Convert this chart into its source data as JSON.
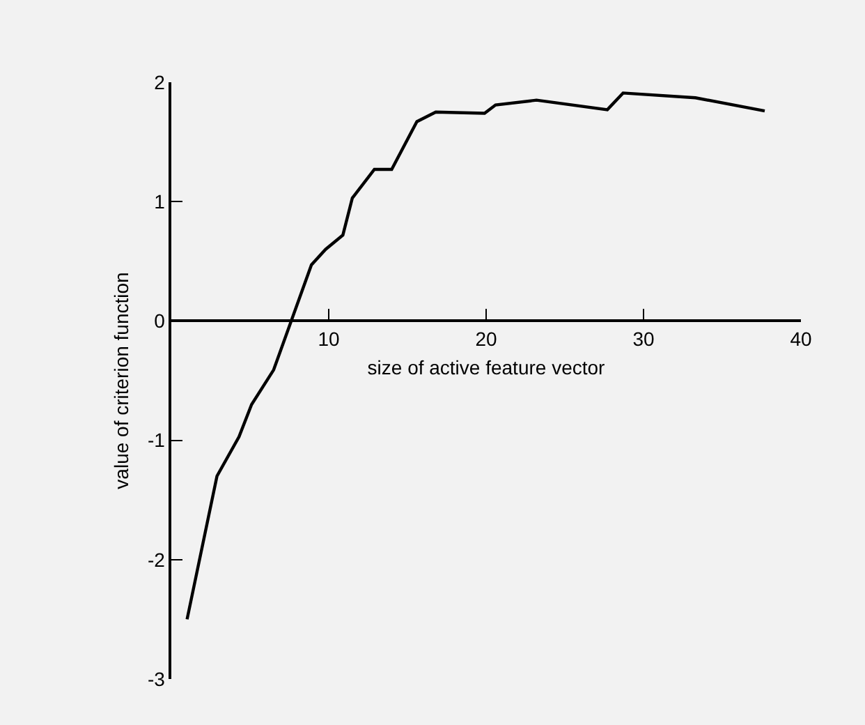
{
  "chart_data": {
    "type": "line",
    "xlabel": "size of active feature vector",
    "ylabel": "value of criterion function",
    "x": [
      1,
      2.9,
      4.3,
      5.1,
      6.5,
      8.9,
      9.8,
      10.9,
      11.5,
      12.9,
      14,
      15.6,
      16.8,
      19.9,
      20.6,
      23.2,
      27.7,
      28.7,
      33.3,
      37.7
    ],
    "series": [
      {
        "color": "#000000",
        "values": [
          -2.5,
          -1.3,
          -0.97,
          -0.7,
          -0.41,
          0.47,
          0.6,
          0.72,
          1.03,
          1.27,
          1.27,
          1.67,
          1.75,
          1.74,
          1.81,
          1.85,
          1.77,
          1.91,
          1.87,
          1.76
        ]
      }
    ],
    "xlim": [
      0,
      40
    ],
    "ylim": [
      -3,
      2
    ],
    "xticks": [
      10,
      20,
      30,
      40
    ],
    "yticks": [
      -3,
      -2,
      -1,
      0,
      1,
      2
    ],
    "grid": false,
    "legend": false,
    "marker": "none",
    "line_style": "solid"
  }
}
